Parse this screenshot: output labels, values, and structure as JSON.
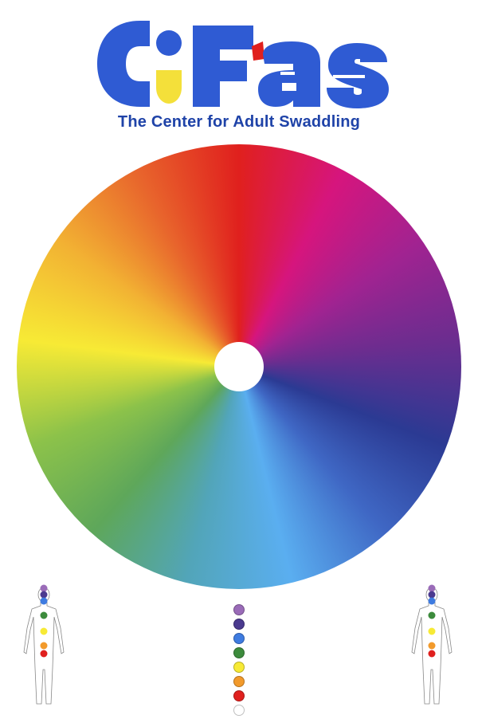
{
  "logo": {
    "text": "C:Fas",
    "colors": {
      "blue": "#2f5bd3",
      "yellow": "#f4e03a",
      "red": "#e0201e",
      "white": "#ffffff"
    }
  },
  "tagline": "The Center for Adult Swaddling",
  "wheel": {
    "colors": [
      "#e0201e",
      "#d6157d",
      "#a12391",
      "#6b2d8f",
      "#2b3a93",
      "#3f67c4",
      "#5aaef0",
      "#52a5b9",
      "#5ea75a",
      "#8cc24a",
      "#f7ea35",
      "#f2b233",
      "#e8652c",
      "#e0201e"
    ]
  },
  "chakras": {
    "colors": [
      "#9a6bb8",
      "#4b3a8f",
      "#3e7be0",
      "#3c8b3c",
      "#f7ea35",
      "#f29a2b",
      "#e0201e"
    ],
    "column_colors": [
      "#9a6bb8",
      "#4b3a8f",
      "#3e7be0",
      "#3c8b3c",
      "#f7ea35",
      "#f29a2b",
      "#e0201e",
      "#ffffff"
    ]
  }
}
